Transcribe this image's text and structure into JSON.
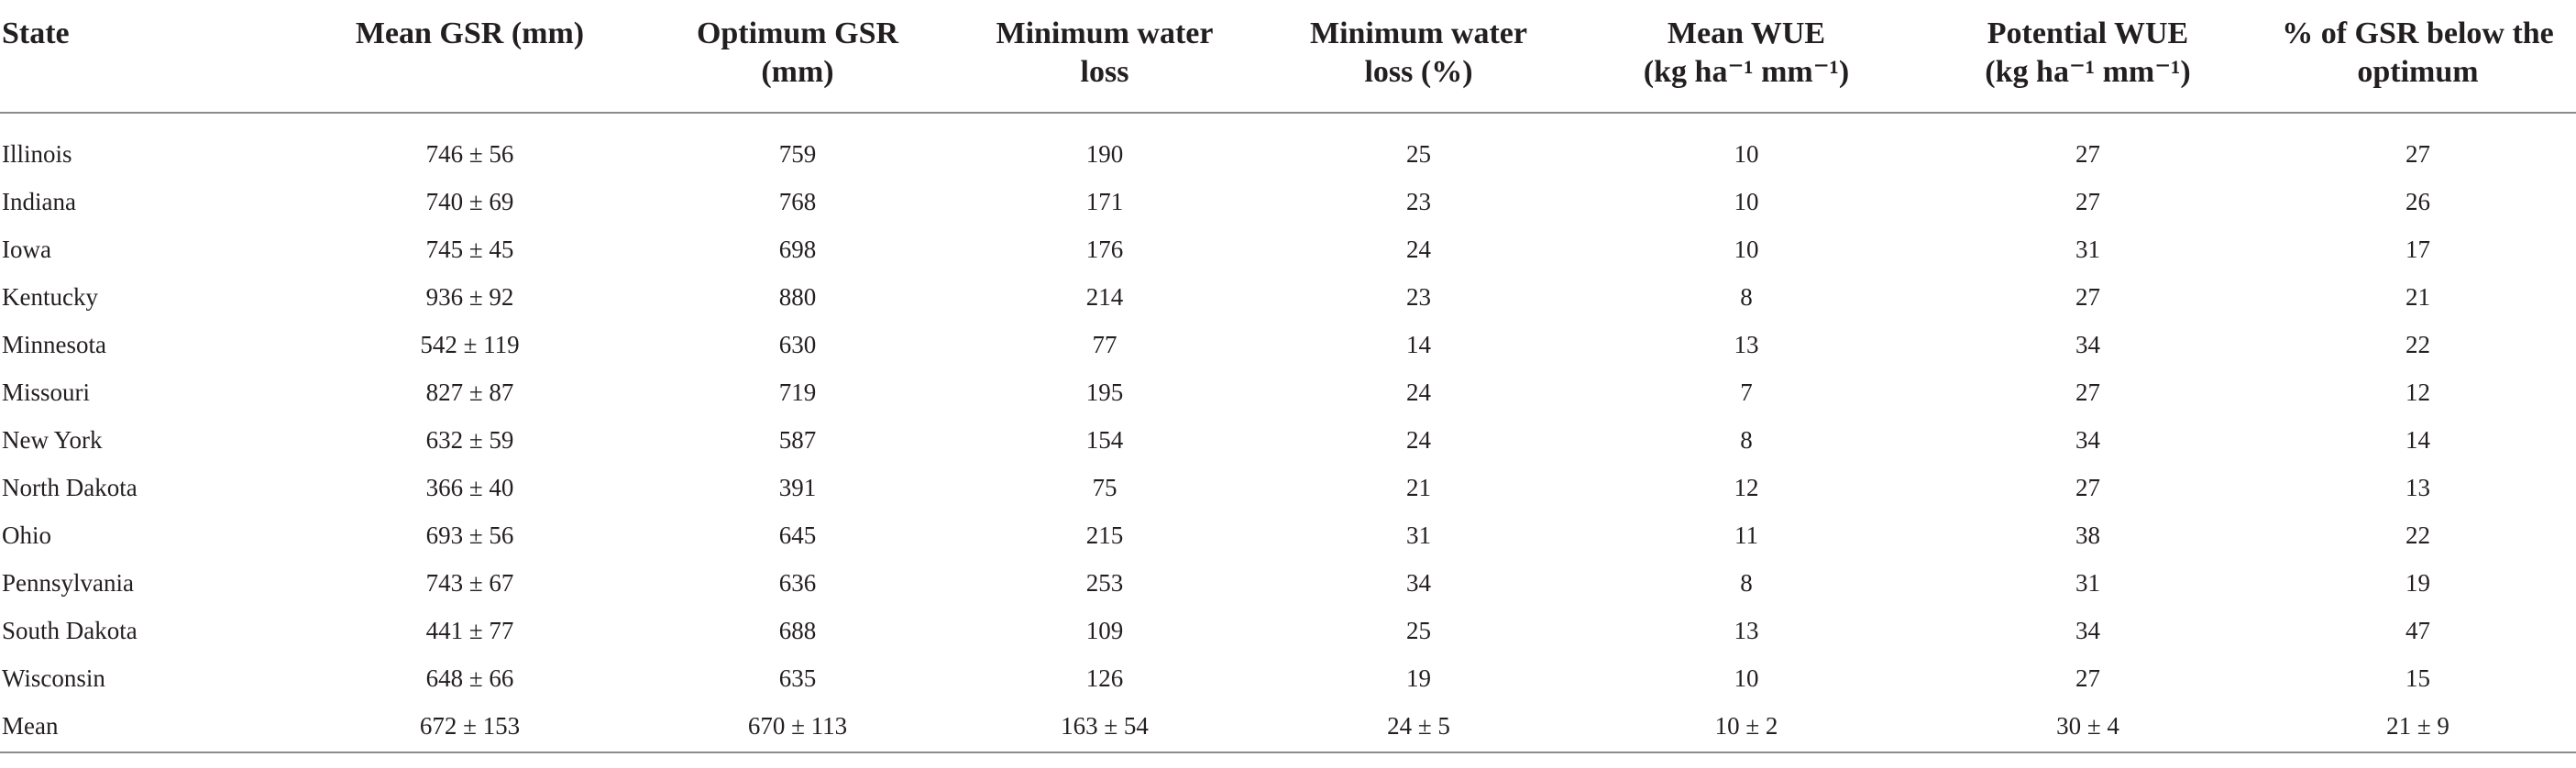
{
  "table": {
    "headers": [
      {
        "line1": "State",
        "line2": ""
      },
      {
        "line1": "Mean GSR (mm)",
        "line2": ""
      },
      {
        "line1": "Optimum GSR",
        "line2": "(mm)"
      },
      {
        "line1": "Minimum water",
        "line2": "loss"
      },
      {
        "line1": "Minimum water",
        "line2": "loss (%)"
      },
      {
        "line1": "Mean WUE",
        "line2": "(kg ha⁻¹ mm⁻¹)"
      },
      {
        "line1": "Potential WUE",
        "line2": "(kg ha⁻¹ mm⁻¹)"
      },
      {
        "line1": "% of GSR below the",
        "line2": "optimum"
      }
    ],
    "rows": [
      [
        "Illinois",
        "746 ± 56",
        "759",
        "190",
        "25",
        "10",
        "27",
        "27"
      ],
      [
        "Indiana",
        "740 ± 69",
        "768",
        "171",
        "23",
        "10",
        "27",
        "26"
      ],
      [
        "Iowa",
        "745 ± 45",
        "698",
        "176",
        "24",
        "10",
        "31",
        "17"
      ],
      [
        "Kentucky",
        "936 ± 92",
        "880",
        "214",
        "23",
        "8",
        "27",
        "21"
      ],
      [
        "Minnesota",
        "542 ± 119",
        "630",
        "77",
        "14",
        "13",
        "34",
        "22"
      ],
      [
        "Missouri",
        "827 ± 87",
        "719",
        "195",
        "24",
        "7",
        "27",
        "12"
      ],
      [
        "New York",
        "632 ± 59",
        "587",
        "154",
        "24",
        "8",
        "34",
        "14"
      ],
      [
        "North Dakota",
        "366 ± 40",
        "391",
        "75",
        "21",
        "12",
        "27",
        "13"
      ],
      [
        "Ohio",
        "693 ± 56",
        "645",
        "215",
        "31",
        "11",
        "38",
        "22"
      ],
      [
        "Pennsylvania",
        "743 ± 67",
        "636",
        "253",
        "34",
        "8",
        "31",
        "19"
      ],
      [
        "South Dakota",
        "441 ± 77",
        "688",
        "109",
        "25",
        "13",
        "34",
        "47"
      ],
      [
        "Wisconsin",
        "648 ± 66",
        "635",
        "126",
        "19",
        "10",
        "27",
        "15"
      ],
      [
        "Mean",
        "672 ± 153",
        "670 ± 113",
        "163 ± 54",
        "24 ± 5",
        "10 ± 2",
        "30 ± 4",
        "21 ± 9"
      ]
    ]
  }
}
